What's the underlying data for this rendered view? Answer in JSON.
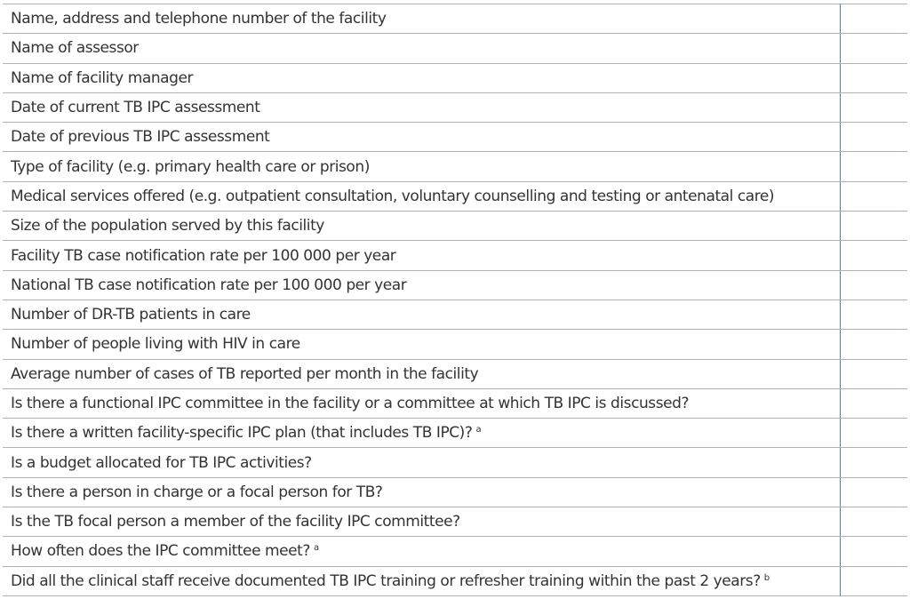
{
  "table": {
    "rows": [
      {
        "label": "Name, address and telephone number of the facility"
      },
      {
        "label": "Name of assessor"
      },
      {
        "label": "Name of facility manager"
      },
      {
        "label": "Date of current TB IPC assessment"
      },
      {
        "label": "Date of previous TB IPC assessment"
      },
      {
        "label": "Type of facility (e.g. primary health care or prison)"
      },
      {
        "label": "Medical services offered (e.g. outpatient consultation, voluntary counselling and testing or antenatal care)"
      },
      {
        "label": "Size of the population served by this facility"
      },
      {
        "label": "Facility TB case notification rate per 100 000 per year"
      },
      {
        "label": "National TB case notification rate per 100 000 per year"
      },
      {
        "label": "Number of DR-TB patients in care"
      },
      {
        "label": "Number of people living with HIV in care"
      },
      {
        "label": "Average number of cases of TB reported per month in the facility"
      },
      {
        "label": "Is there a functional IPC committee in the facility or a committee at which TB IPC is discussed?"
      },
      {
        "label": "Is there a written facility-specific IPC plan (that includes TB IPC)?",
        "note": "a"
      },
      {
        "label": "Is a budget allocated for TB IPC activities?"
      },
      {
        "label": "Is there a person in charge or a focal person for TB?"
      },
      {
        "label": "Is the TB focal person a member of the facility IPC committee?"
      },
      {
        "label": "How often does the IPC committee meet?",
        "note": "a"
      },
      {
        "label": "Did all the clinical staff receive documented TB IPC training or refresher training within the past 2 years?",
        "note": "b"
      }
    ]
  }
}
